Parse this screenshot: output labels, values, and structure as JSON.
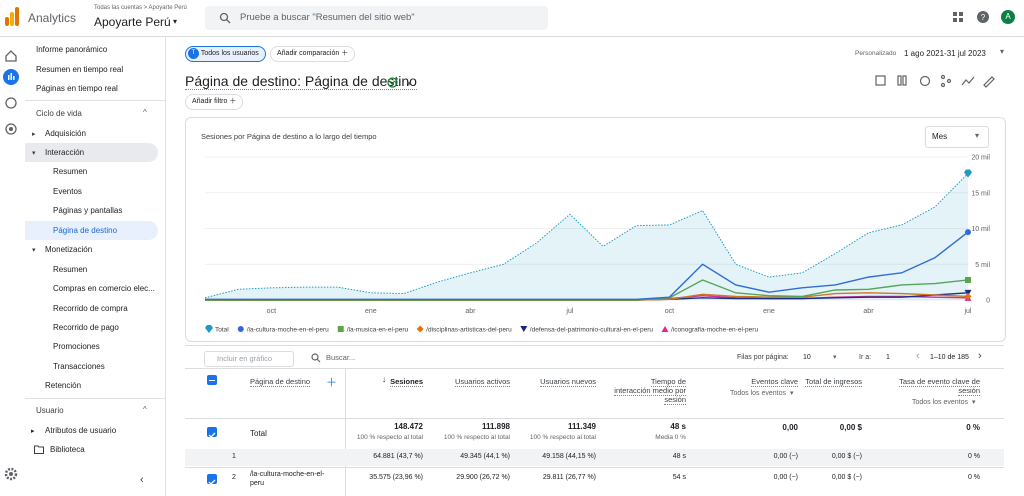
{
  "header": {
    "product": "Analytics",
    "breadcrumb": "Todas las cuentas > Apoyarte Perú",
    "property": "Apoyarte Perú",
    "search_placeholder": "Pruebe a buscar \"Resumen del sitio web\"",
    "avatar": "A"
  },
  "nav": {
    "top": [
      "Informe panorámico",
      "Resumen en tiempo real",
      "Páginas en tiempo real"
    ],
    "lifecycle": {
      "title": "Ciclo de vida",
      "items": [
        "Adquisición",
        "Interacción",
        "Resumen",
        "Eventos",
        "Páginas y pantallas",
        "Página de destino",
        "Monetización",
        "Resumen",
        "Compras en comercio elec...",
        "Recorrido de compra",
        "Recorrido de pago",
        "Promociones",
        "Transacciones",
        "Retención"
      ]
    },
    "user": {
      "title": "Usuario",
      "items": [
        "Atributos de usuario",
        "Biblioteca"
      ]
    }
  },
  "toolbar": {
    "segment_badge": "T",
    "segment": "Todos los usuarios",
    "add_comparison": "Añadir comparación",
    "date_preset": "Personalizado",
    "date_range": "1 ago 2021-31 jul 2023",
    "report_title": "Página de destino: Página de destino",
    "add_filter": "Añadir filtro"
  },
  "chart_data": {
    "type": "line",
    "title": "Sesiones por Página de destino a lo largo del tiempo",
    "granularity": "Mes",
    "categories": [
      null,
      null,
      "oct",
      null,
      null,
      "ene",
      null,
      null,
      "abr",
      null,
      null,
      "jul",
      null,
      null,
      "oct",
      null,
      null,
      "ene",
      null,
      null,
      "abr",
      null,
      null,
      "jul"
    ],
    "ylim": [
      0,
      20000
    ],
    "yticks": [
      0,
      {
        "value": 5000,
        "label": "5 mil"
      },
      {
        "value": 10000,
        "label": "10 mil"
      },
      {
        "value": 15000,
        "label": "15 mil"
      },
      {
        "value": 20000,
        "label": "20 mil"
      }
    ],
    "grid": true,
    "series": [
      {
        "name": "Total",
        "color": "#1e9bc4",
        "marker": "pin",
        "dotted": true,
        "area": true,
        "values": [
          300,
          1500,
          1700,
          1800,
          1800,
          1000,
          900,
          2500,
          3800,
          5000,
          8000,
          12000,
          7500,
          10400,
          10500,
          12500,
          5000,
          3200,
          3800,
          6500,
          9400,
          10500,
          13000,
          17700
        ]
      },
      {
        "name": "/la-cultura-moche-en-el-peru",
        "color": "#3367d6",
        "marker": "circle",
        "values": [
          100,
          100,
          100,
          100,
          100,
          100,
          100,
          100,
          100,
          100,
          100,
          100,
          100,
          100,
          400,
          5000,
          2100,
          1100,
          1700,
          2100,
          3200,
          3800,
          5900,
          9500
        ]
      },
      {
        "name": "/la-musica-en-el-peru",
        "color": "#5aa84b",
        "marker": "square",
        "values": [
          0,
          0,
          0,
          0,
          0,
          0,
          0,
          0,
          0,
          0,
          0,
          0,
          0,
          0,
          300,
          2800,
          1000,
          600,
          500,
          1400,
          1500,
          2100,
          2300,
          2800
        ]
      },
      {
        "name": "/disciplinas-artisticas-del-peru",
        "color": "#e8710a",
        "marker": "diamond",
        "values": [
          0,
          0,
          0,
          0,
          0,
          0,
          0,
          0,
          0,
          0,
          0,
          0,
          0,
          0,
          100,
          800,
          500,
          400,
          400,
          900,
          1000,
          900,
          700,
          500
        ]
      },
      {
        "name": "/defensa-del-patrimonio-cultural-en-el-peru",
        "color": "#1a237e",
        "marker": "triangle-down",
        "values": [
          0,
          0,
          0,
          0,
          0,
          0,
          0,
          0,
          0,
          0,
          0,
          0,
          0,
          0,
          100,
          300,
          200,
          200,
          200,
          300,
          400,
          400,
          700,
          1000
        ]
      },
      {
        "name": "/iconografia-moche-en-el-peru",
        "color": "#e52592",
        "marker": "triangle-up",
        "values": [
          0,
          0,
          0,
          0,
          0,
          0,
          0,
          0,
          0,
          0,
          0,
          0,
          0,
          0,
          200,
          600,
          300,
          200,
          200,
          400,
          500,
          500,
          400,
          300
        ]
      }
    ]
  },
  "table": {
    "include_in_chart": "Incluir en gráfico",
    "search": "Buscar...",
    "rows_per_page_label": "Filas por página:",
    "rows_per_page": "10",
    "goto_label": "Ir a:",
    "goto": "1",
    "pagination": "1–10 de 185",
    "columns": [
      {
        "label": "Página de destino"
      },
      {
        "label": "Sesiones"
      },
      {
        "label": "Usuarios activos"
      },
      {
        "label": "Usuarios nuevos"
      },
      {
        "label": "Tiempo de interacción medio por sesión"
      },
      {
        "label": "Eventos clave",
        "filter": "Todos los eventos"
      },
      {
        "label": "Total de ingresos"
      },
      {
        "label": "Tasa de evento clave de sesión",
        "filter": "Todos los eventos"
      }
    ],
    "total": {
      "label": "Total",
      "cells": [
        {
          "value": "148.472",
          "note": "100 % respecto al total"
        },
        {
          "value": "111.898",
          "note": "100 % respecto al total"
        },
        {
          "value": "111.349",
          "note": "100 % respecto al total"
        },
        {
          "value": "48 s",
          "note": "Media 0 %"
        },
        {
          "value": "0,00"
        },
        {
          "value": "0,00 $"
        },
        {
          "value": "0 %"
        }
      ]
    },
    "rows": [
      {
        "index": "1",
        "cells": [
          "64.881 (43,7 %)",
          "49.345 (44,1 %)",
          "49.158 (44,15 %)",
          "48 s",
          "0,00 (−)",
          "0,00 $ (−)",
          "0 %"
        ]
      },
      {
        "index": "2",
        "page": "/la-cultura-moche-en-el-peru",
        "cells": [
          "35.575 (23,96 %)",
          "29.900 (26,72 %)",
          "29.811 (26,77 %)",
          "54 s",
          "0,00 (−)",
          "0,00 $ (−)",
          "0 %"
        ]
      }
    ]
  }
}
